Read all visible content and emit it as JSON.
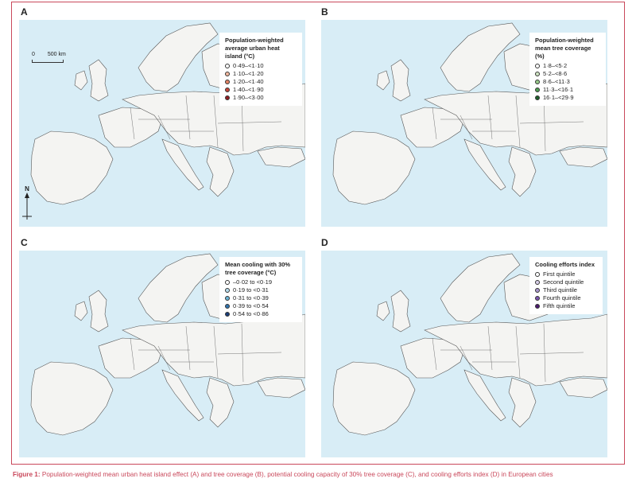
{
  "figure": {
    "caption_label": "Figure 1:",
    "caption_text": "Population-weighted mean urban heat island effect (A) and tree coverage (B), potential cooling capacity of 30% tree coverage (C), and cooling efforts index (D) in European cities"
  },
  "scale": {
    "zero": "0",
    "distance": "500 km"
  },
  "north": "N",
  "panels": [
    {
      "letter": "A",
      "legend_title": "Population-weighted average urban heat island (°C)",
      "classes": [
        {
          "label": "0·49–<1·10",
          "color": "#ffffff"
        },
        {
          "label": "1·10–<1·20",
          "color": "#f2b9a0"
        },
        {
          "label": "1·20–<1·40",
          "color": "#e38466"
        },
        {
          "label": "1·40–<1·90",
          "color": "#c8473a"
        },
        {
          "label": "1·90–<3·00",
          "color": "#8f1d22"
        }
      ]
    },
    {
      "letter": "B",
      "legend_title": "Population-weighted mean tree coverage (%)",
      "classes": [
        {
          "label": "1·8–<5·2",
          "color": "#ffffff"
        },
        {
          "label": "5·2–<8·6",
          "color": "#cfe5c3"
        },
        {
          "label": "8·6–<11·3",
          "color": "#98c98b"
        },
        {
          "label": "11·3–<16·1",
          "color": "#4f9e53"
        },
        {
          "label": "16·1–<29·9",
          "color": "#1f5d2c"
        }
      ]
    },
    {
      "letter": "C",
      "legend_title": "Mean cooling with 30% tree coverage (°C)",
      "classes": [
        {
          "label": "–0·02 to <0·19",
          "color": "#ffffff"
        },
        {
          "label": "0·19 to <0·31",
          "color": "#b7dcec"
        },
        {
          "label": "0·31 to <0·39",
          "color": "#6ab3d3"
        },
        {
          "label": "0·39 to <0·54",
          "color": "#3173ad"
        },
        {
          "label": "0·54 to <0·86",
          "color": "#1b3e78"
        }
      ]
    },
    {
      "letter": "D",
      "legend_title": "Cooling efforts index",
      "classes": [
        {
          "label": "First quintile",
          "color": "#ffffff"
        },
        {
          "label": "Second quintile",
          "color": "#d9d1ea"
        },
        {
          "label": "Third quintile",
          "color": "#a897cc"
        },
        {
          "label": "Fourth quintile",
          "color": "#7a56ad"
        },
        {
          "label": "Fifth quintile",
          "color": "#4b1a6e"
        }
      ]
    }
  ],
  "colors": {
    "sea": "#d8edf6",
    "land": "#f4f4f2",
    "border": "#555555",
    "frame": "#c9485b"
  }
}
